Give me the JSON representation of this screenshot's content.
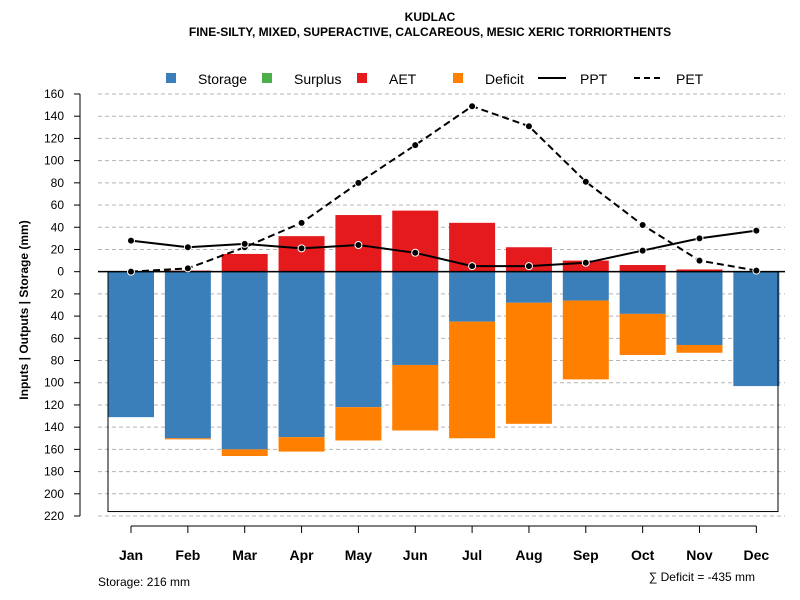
{
  "title": "KUDLAC",
  "subtitle": "FINE-SILTY, MIXED, SUPERACTIVE, CALCAREOUS, MESIC XERIC TORRIORTHENTS",
  "legend": {
    "storage": "Storage",
    "surplus": "Surplus",
    "aet": "AET",
    "deficit": "Deficit",
    "ppt": "PPT",
    "pet": "PET"
  },
  "colors": {
    "storage": "#3a7fba",
    "surplus": "#4daf4a",
    "aet": "#e41a1c",
    "deficit": "#ff7f00",
    "line": "#000000",
    "grid": "#b4b4b4"
  },
  "ylabel": "Inputs | Outputs | Storage     (mm)",
  "footer": {
    "storage": "Storage: 216 mm",
    "deficit": "∑ Deficit = -435 mm"
  },
  "chart_data": {
    "type": "bar",
    "title": "KUDLAC",
    "categories": [
      "Jan",
      "Feb",
      "Mar",
      "Apr",
      "May",
      "Jun",
      "Jul",
      "Aug",
      "Sep",
      "Oct",
      "Nov",
      "Dec"
    ],
    "ylim": [
      -220,
      160
    ],
    "ytick_values": [
      160,
      140,
      120,
      100,
      80,
      60,
      40,
      20,
      0,
      -20,
      -40,
      -60,
      -80,
      -100,
      -120,
      -140,
      -160,
      -180,
      -200,
      -220
    ],
    "ytick_labels": [
      "160",
      "140",
      "120",
      "100",
      "80",
      "60",
      "40",
      "20",
      "0",
      "20",
      "40",
      "60",
      "80",
      "100",
      "120",
      "140",
      "160",
      "180",
      "200",
      "220"
    ],
    "storage_capacity": 216,
    "series": [
      {
        "name": "AET",
        "values": [
          0,
          1,
          16,
          32,
          51,
          55,
          44,
          22,
          10,
          6,
          2,
          0
        ]
      },
      {
        "name": "Surplus",
        "values": [
          0,
          0,
          0,
          0,
          0,
          0,
          0,
          0,
          0,
          0,
          0,
          0
        ]
      },
      {
        "name": "Storage",
        "values": [
          131,
          150,
          160,
          149,
          122,
          84,
          45,
          28,
          26,
          38,
          66,
          103
        ]
      },
      {
        "name": "Deficit",
        "values": [
          0,
          1,
          6,
          13,
          30,
          59,
          105,
          109,
          71,
          37,
          7,
          0
        ]
      },
      {
        "name": "PPT",
        "values": [
          28,
          22,
          25,
          21,
          24,
          17,
          5,
          5,
          8,
          19,
          30,
          37
        ]
      },
      {
        "name": "PET",
        "values": [
          0,
          3,
          22,
          44,
          80,
          114,
          149,
          131,
          81,
          42,
          10,
          1
        ]
      }
    ]
  }
}
